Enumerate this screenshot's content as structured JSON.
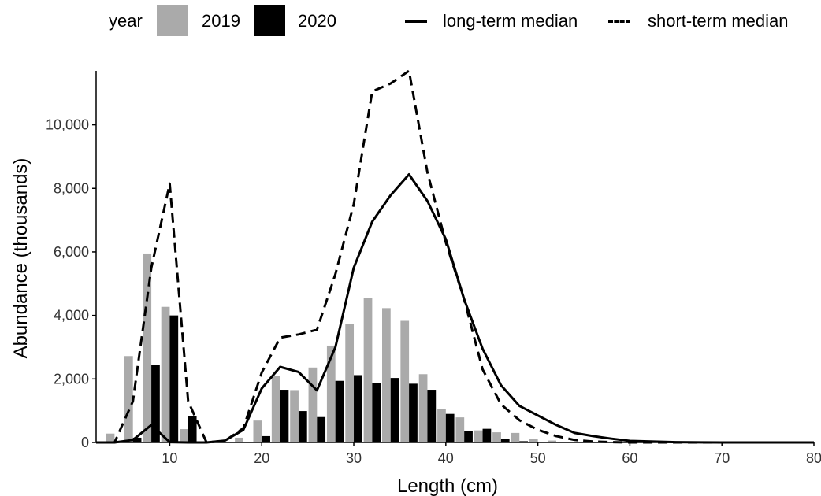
{
  "legend": {
    "year_title": "year",
    "series_2019": "2019",
    "series_2020": "2020",
    "long_term": "long-term median",
    "short_term": "short-term median"
  },
  "colors": {
    "y2019": "#aaaaaa",
    "y2020": "#000000"
  },
  "chart_data": {
    "type": "bar",
    "xlabel": "Length (cm)",
    "ylabel": "Abundance (thousands)",
    "xlim": [
      2,
      80
    ],
    "ylim": [
      0,
      11700
    ],
    "x_ticks": [
      10,
      20,
      30,
      40,
      50,
      60,
      70,
      80
    ],
    "y_ticks": [
      0,
      2000,
      4000,
      6000,
      8000,
      10000
    ],
    "x_tick_labels": [
      "10",
      "20",
      "30",
      "40",
      "50",
      "60",
      "70",
      "80"
    ],
    "y_tick_labels": [
      "0",
      "2,000",
      "4,000",
      "6,000",
      "8,000",
      "10,000"
    ],
    "grid": false,
    "legend_position": "top",
    "bar_series": [
      {
        "name": "2019",
        "x": [
          4,
          6,
          8,
          10,
          12,
          14,
          16,
          18,
          20,
          22,
          24,
          26,
          28,
          30,
          32,
          34,
          36,
          38,
          40,
          42,
          44,
          46,
          48,
          50,
          52,
          54
        ],
        "values": [
          280,
          2720,
          5950,
          4270,
          420,
          0,
          0,
          150,
          690,
          2100,
          1650,
          2360,
          3050,
          3740,
          4540,
          4230,
          3830,
          2150,
          1050,
          790,
          380,
          320,
          300,
          120,
          60,
          20
        ]
      },
      {
        "name": "2020",
        "x": [
          4,
          6,
          8,
          10,
          12,
          14,
          16,
          18,
          20,
          22,
          24,
          26,
          28,
          30,
          32,
          34,
          36,
          38,
          40,
          42,
          44,
          46,
          48,
          50,
          52,
          54
        ],
        "values": [
          0,
          150,
          2430,
          4000,
          830,
          0,
          0,
          0,
          200,
          1660,
          990,
          800,
          1940,
          2120,
          1860,
          2030,
          1850,
          1660,
          900,
          350,
          430,
          120,
          40,
          20,
          0,
          0
        ]
      }
    ],
    "line_series": [
      {
        "name": "long-term median",
        "style": "solid",
        "x": [
          2,
          4,
          6,
          8,
          10,
          12,
          14,
          16,
          18,
          20,
          22,
          24,
          26,
          28,
          30,
          32,
          34,
          36,
          38,
          40,
          42,
          44,
          46,
          48,
          50,
          52,
          54,
          56,
          58,
          60,
          65,
          70,
          80
        ],
        "values": [
          0,
          0,
          80,
          550,
          10,
          0,
          0,
          60,
          400,
          1700,
          2380,
          2220,
          1640,
          3000,
          5500,
          6950,
          7780,
          8440,
          7600,
          6400,
          4500,
          2950,
          1800,
          1150,
          850,
          550,
          300,
          200,
          120,
          50,
          10,
          0,
          0
        ]
      },
      {
        "name": "short-term median",
        "style": "dashed",
        "x": [
          2,
          4,
          6,
          8,
          10,
          12,
          14,
          16,
          18,
          20,
          22,
          24,
          26,
          28,
          30,
          32,
          34,
          36,
          38,
          40,
          42,
          44,
          46,
          48,
          50,
          52,
          54,
          56,
          58,
          60,
          65,
          70,
          80
        ],
        "values": [
          0,
          0,
          1300,
          5500,
          8150,
          1300,
          0,
          50,
          450,
          2200,
          3300,
          3400,
          3550,
          5300,
          7500,
          11050,
          11300,
          11700,
          8500,
          6300,
          4500,
          2300,
          1200,
          700,
          400,
          200,
          80,
          30,
          10,
          0,
          0,
          0,
          0
        ]
      }
    ]
  }
}
